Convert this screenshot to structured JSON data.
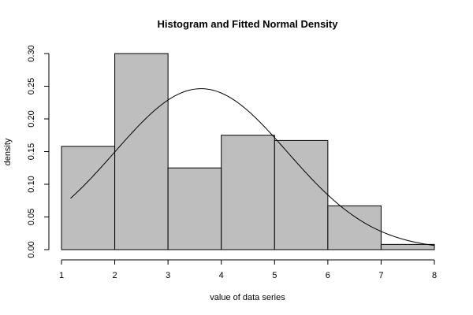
{
  "chart_data": {
    "type": "bar",
    "title": "Histogram and Fitted Normal Density",
    "xlabel": "value of data series",
    "ylabel": "density",
    "xlim": [
      1,
      8
    ],
    "ylim": [
      0,
      0.3
    ],
    "grid": false,
    "bins": [
      {
        "x0": 1,
        "x1": 2,
        "value": 0.158
      },
      {
        "x0": 2,
        "x1": 3,
        "value": 0.3
      },
      {
        "x0": 3,
        "x1": 4,
        "value": 0.125
      },
      {
        "x0": 4,
        "x1": 5,
        "value": 0.175
      },
      {
        "x0": 5,
        "x1": 6,
        "value": 0.167
      },
      {
        "x0": 6,
        "x1": 7,
        "value": 0.067
      },
      {
        "x0": 7,
        "x1": 8,
        "value": 0.008
      }
    ],
    "x_ticks": [
      "1",
      "2",
      "3",
      "4",
      "5",
      "6",
      "7",
      "8"
    ],
    "y_ticks": [
      "0.00",
      "0.05",
      "0.10",
      "0.15",
      "0.20",
      "0.25",
      "0.30"
    ],
    "fitted_curve": {
      "type": "normal",
      "mean": 3.62,
      "sd": 1.62,
      "x_range": [
        1.17,
        8.0
      ]
    },
    "colors": {
      "bar_fill": "#bebebe",
      "bar_stroke": "#000000",
      "curve": "#000000"
    }
  }
}
